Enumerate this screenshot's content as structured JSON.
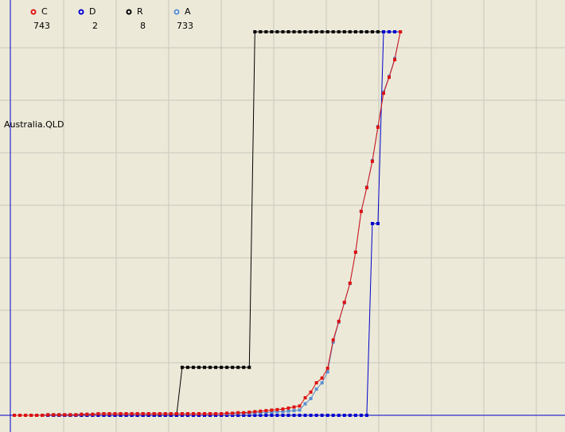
{
  "chart_data": {
    "type": "line",
    "label": "Australia.QLD",
    "series": [
      {
        "name": "R",
        "color": "#000000",
        "ylim": [
          0,
          8
        ],
        "values": [
          0,
          0,
          0,
          0,
          0,
          0,
          0,
          0,
          0,
          0,
          0,
          0,
          0,
          0,
          0,
          0,
          0,
          0,
          0,
          0,
          0,
          0,
          0,
          0,
          0,
          0,
          0,
          0,
          0,
          0,
          1,
          1,
          1,
          1,
          1,
          1,
          1,
          1,
          1,
          1,
          1,
          1,
          1,
          8,
          8,
          8,
          8,
          8,
          8,
          8,
          8,
          8,
          8,
          8,
          8,
          8,
          8,
          8,
          8,
          8,
          8,
          8,
          8,
          8,
          8,
          8,
          8,
          8,
          8,
          8
        ]
      },
      {
        "name": "D",
        "color": "#0000cc",
        "ylim": [
          0,
          2
        ],
        "values": [
          0,
          0,
          0,
          0,
          0,
          0,
          0,
          0,
          0,
          0,
          0,
          0,
          0,
          0,
          0,
          0,
          0,
          0,
          0,
          0,
          0,
          0,
          0,
          0,
          0,
          0,
          0,
          0,
          0,
          0,
          0,
          0,
          0,
          0,
          0,
          0,
          0,
          0,
          0,
          0,
          0,
          0,
          0,
          0,
          0,
          0,
          0,
          0,
          0,
          0,
          0,
          0,
          0,
          0,
          0,
          0,
          0,
          0,
          0,
          0,
          0,
          0,
          0,
          0,
          1,
          1,
          2,
          2,
          2,
          2
        ]
      },
      {
        "name": "A",
        "color": "#5b8fd0",
        "ylim": [
          0,
          733
        ],
        "values": [
          0,
          0,
          0,
          0,
          0,
          0,
          1,
          1,
          1,
          1,
          1,
          1,
          2,
          2,
          2,
          3,
          3,
          3,
          3,
          3,
          3,
          3,
          3,
          3,
          3,
          3,
          3,
          3,
          3,
          3,
          3,
          3,
          3,
          3,
          3,
          3,
          3,
          3,
          3,
          3,
          4,
          4,
          4,
          5,
          5,
          6,
          6,
          7,
          7,
          8,
          9,
          10,
          22,
          32,
          50,
          62,
          83,
          140,
          178,
          215,
          252,
          312,
          390,
          436,
          487,
          552,
          618,
          648,
          682,
          733
        ]
      },
      {
        "name": "C",
        "color": "#dd1111",
        "ylim": [
          0,
          743
        ],
        "values": [
          0,
          0,
          0,
          0,
          0,
          0,
          1,
          1,
          1,
          1,
          1,
          1,
          2,
          2,
          2,
          3,
          3,
          3,
          3,
          3,
          3,
          3,
          3,
          3,
          3,
          3,
          3,
          3,
          3,
          3,
          3,
          3,
          3,
          3,
          3,
          3,
          3,
          3,
          4,
          4,
          5,
          5,
          6,
          7,
          8,
          9,
          10,
          11,
          12,
          14,
          16,
          18,
          34,
          45,
          63,
          72,
          91,
          146,
          182,
          219,
          256,
          316,
          395,
          441,
          492,
          558,
          624,
          655,
          689,
          743
        ]
      }
    ],
    "legend_order": [
      3,
      1,
      0,
      2
    ]
  }
}
